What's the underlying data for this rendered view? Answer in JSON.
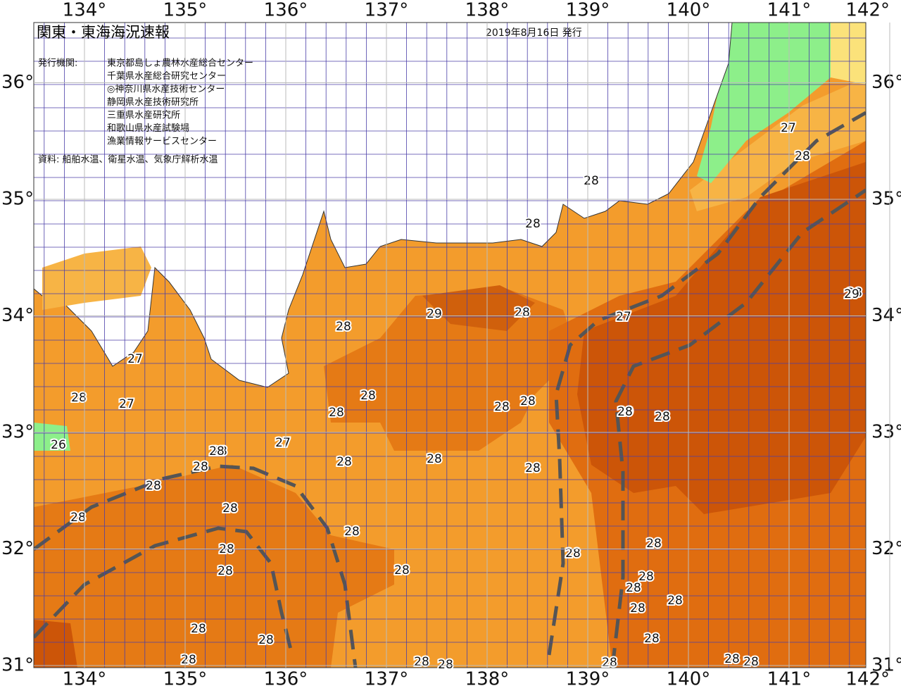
{
  "header": {
    "title": "関東・東海海況速報",
    "date": "2019年8月16日 発行",
    "issuer_label": "発行機関:",
    "issuers": [
      "東京都島しょ農林水産総合センター",
      "千葉県水産総合研究センター",
      "◎神奈川県水産技術センター",
      "静岡県水産技術研究所",
      "三重県水産研究所",
      "和歌山県水産試験場",
      "漁業情報サービスセンター"
    ],
    "source": "資料: 船舶水温、衛星水温、気象庁解析水温"
  },
  "axes": {
    "lon_ticks": [
      {
        "value": 134,
        "label": "134°"
      },
      {
        "value": 135,
        "label": "135°"
      },
      {
        "value": 136,
        "label": "136°"
      },
      {
        "value": 137,
        "label": "137°"
      },
      {
        "value": 138,
        "label": "138°"
      },
      {
        "value": 139,
        "label": "139°"
      },
      {
        "value": 140,
        "label": "140°"
      },
      {
        "value": 141,
        "label": "141°"
      },
      {
        "value": 142,
        "label": "142°"
      }
    ],
    "lat_ticks": [
      {
        "value": 36,
        "label": "36°"
      },
      {
        "value": 35,
        "label": "35°"
      },
      {
        "value": 34,
        "label": "34°"
      },
      {
        "value": 33,
        "label": "33°"
      },
      {
        "value": 32,
        "label": "32°"
      },
      {
        "value": 31,
        "label": "31°"
      }
    ]
  },
  "contour_labels": [
    "27",
    "28",
    "28",
    "28",
    "28",
    "29",
    "28",
    "27",
    "28",
    "29",
    "28",
    "27",
    "27",
    "28",
    "28",
    "28",
    "27",
    "26",
    "28",
    "28",
    "28",
    "28",
    "28",
    "28",
    "28",
    "28",
    "28",
    "28",
    "28",
    "28",
    "28",
    "28",
    "28",
    "28",
    "28",
    "28",
    "28",
    "28",
    "28",
    "28",
    "28",
    "28",
    "28",
    "28",
    "28",
    "28",
    "28",
    "28",
    "29",
    "28"
  ]
}
